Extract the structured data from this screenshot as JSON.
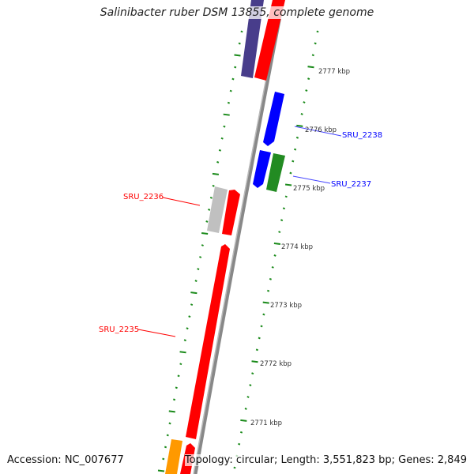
{
  "title": "Salinibacter ruber DSM 13855, complete genome",
  "accession": "Accession: NC_007677",
  "summary": "Topology: circular; Length: 3,551,823 bp; Genes: 2,849",
  "ruler_labels": [
    "2777 kbp",
    "2776 kbp",
    "2775 kbp",
    "2774 kbp",
    "2773 kbp",
    "2772 kbp",
    "2771 kbp"
  ],
  "gene_labels": {
    "sru2238": "SRU_2238",
    "sru2237": "SRU_2237",
    "sru2236": "SRU_2236",
    "sru2235": "SRU_2235"
  },
  "colors": {
    "backbone": "#888888",
    "tick": "#1a8a1a",
    "forward_label": "#0000ff",
    "reverse_label": "#ff0000",
    "purple_gene": "#483d8b",
    "red_gene": "#ff0000",
    "blue_gene": "#0000ff",
    "green_gene": "#228b22",
    "gray_gene": "#c0c0c0",
    "orange_gene": "#ff9900"
  }
}
